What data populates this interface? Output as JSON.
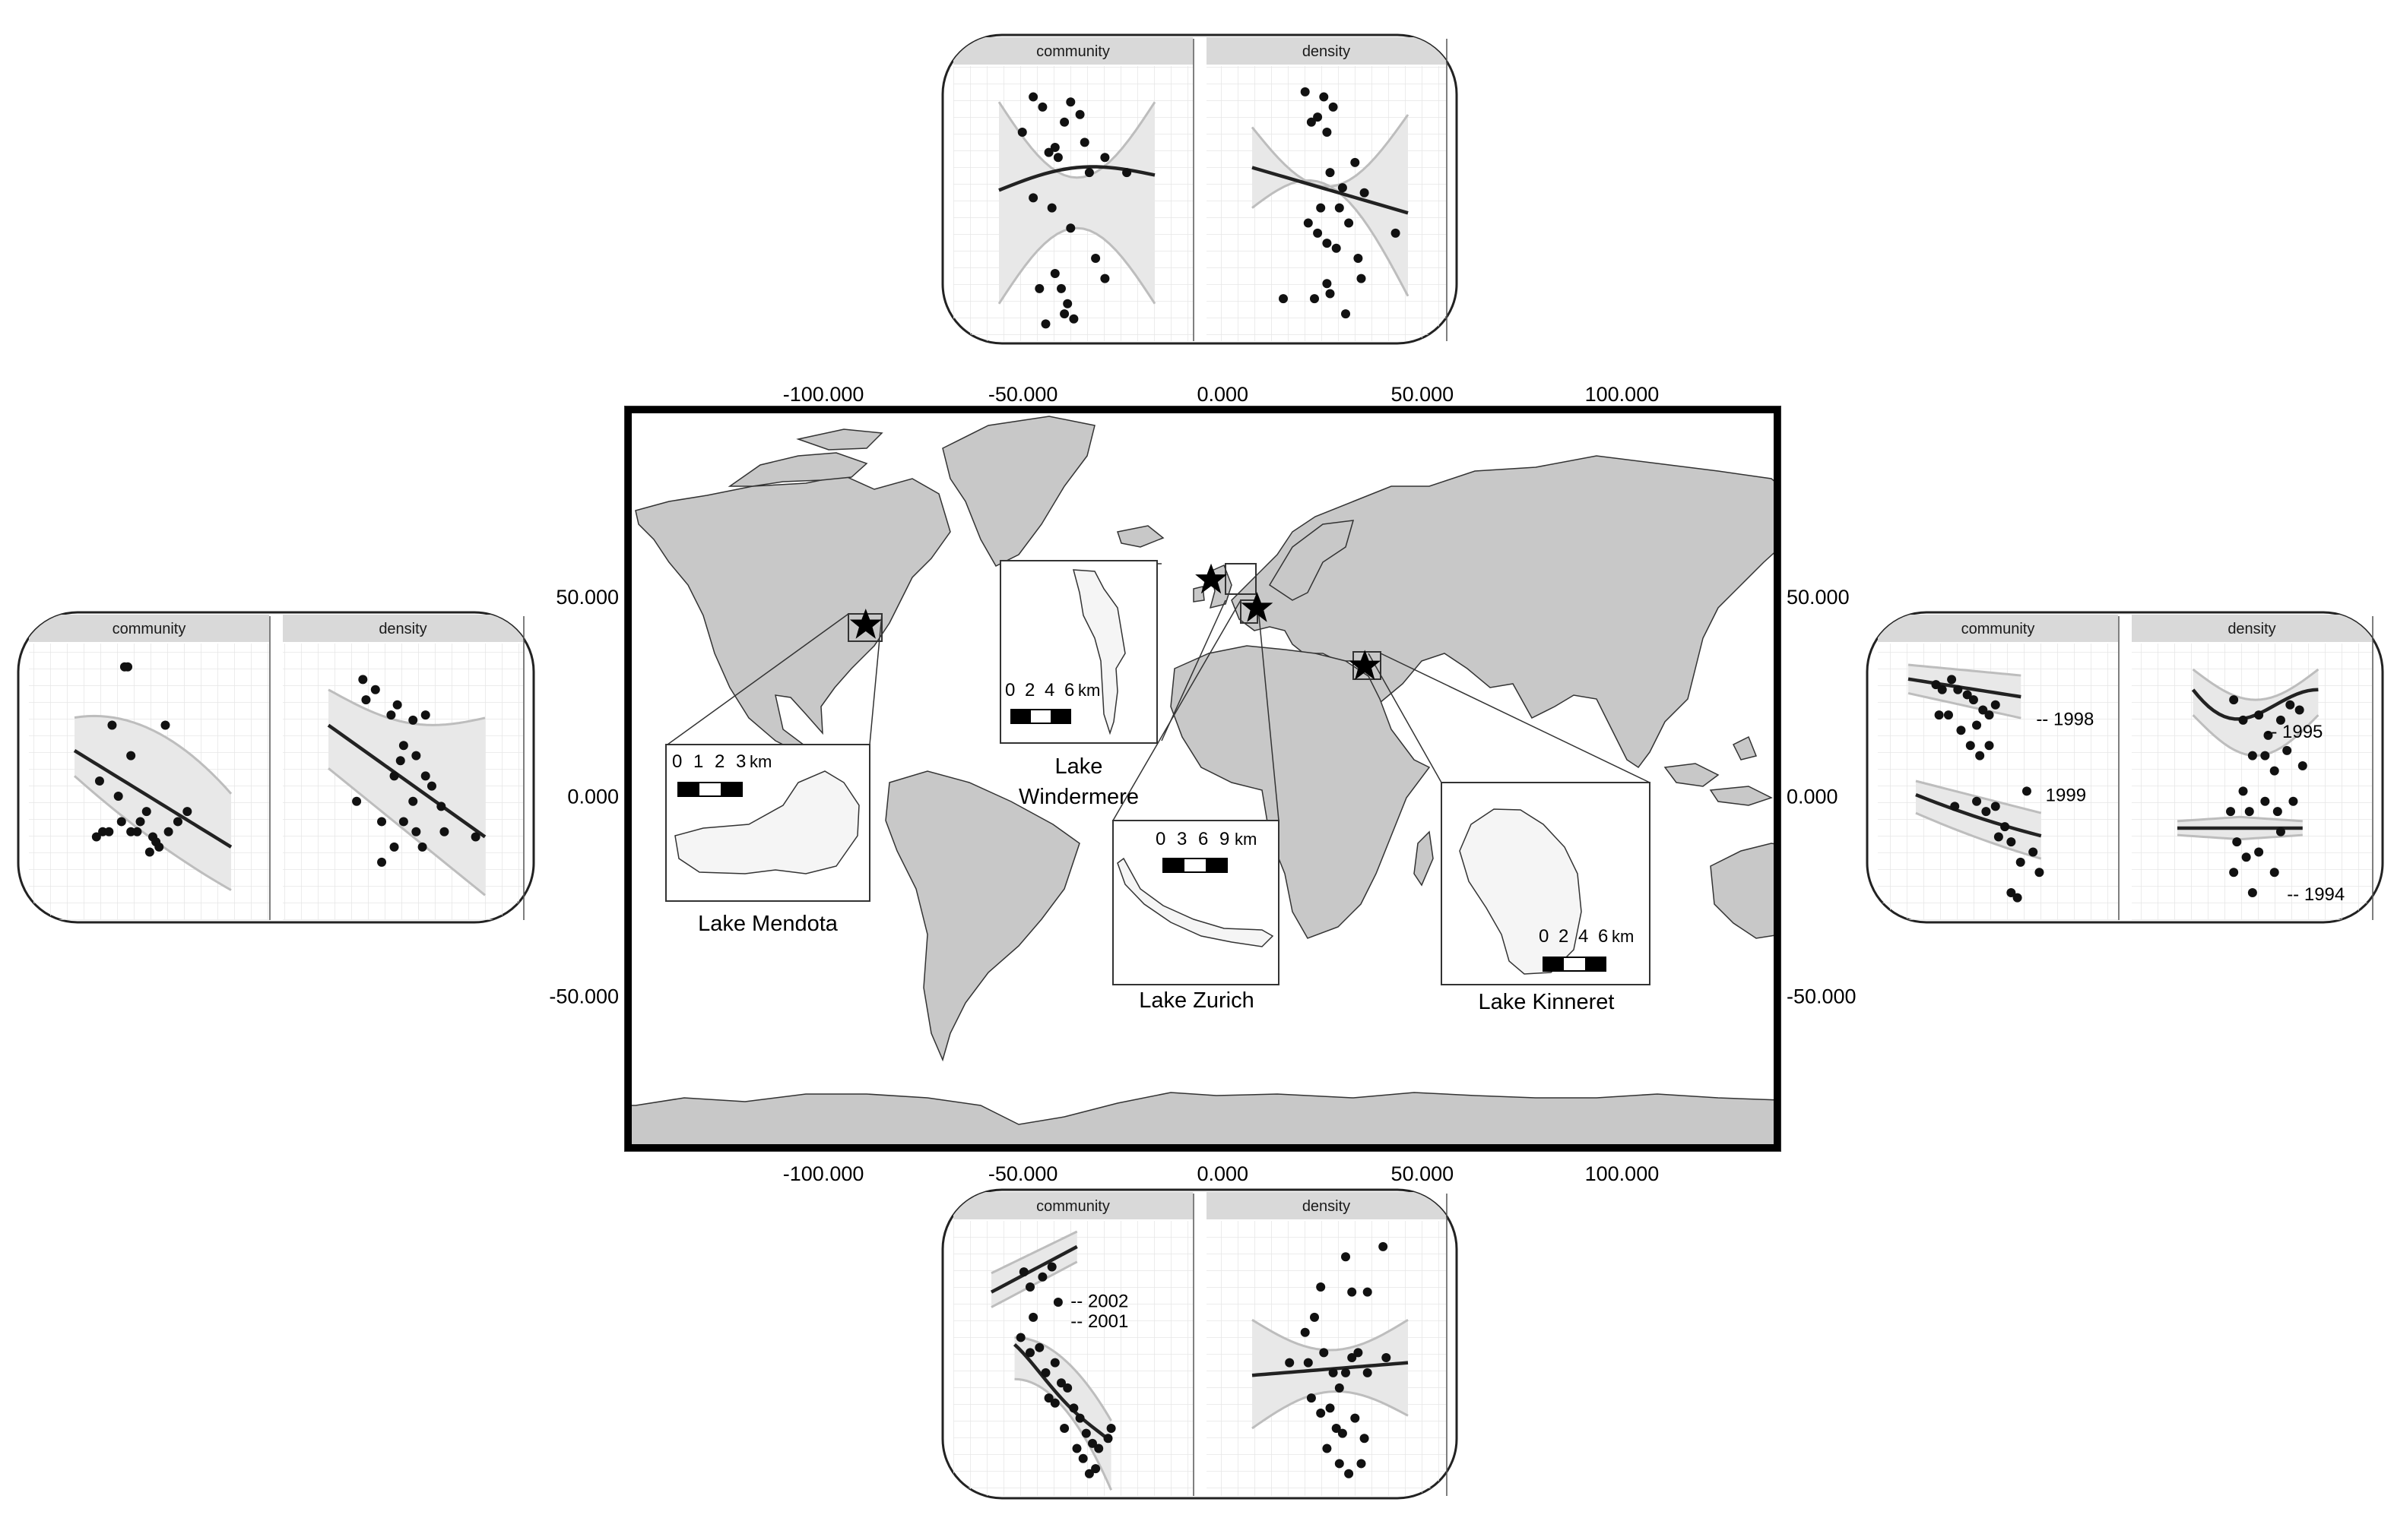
{
  "map": {
    "x_ticks": [
      "-100.000",
      "-50.000",
      "0.000",
      "50.000",
      "100.000"
    ],
    "y_ticks": [
      "50.000",
      "0.000",
      "-50.000"
    ],
    "x_tick_values": [
      -100,
      -50,
      0,
      50,
      100
    ],
    "y_tick_values": [
      50,
      0,
      -50
    ],
    "lon_range": [
      -148,
      138
    ],
    "lat_range": [
      -87,
      96
    ],
    "colors": {
      "land": "#c8c8c8",
      "ocean": "#ffffff",
      "outline": "#333333",
      "lake": "#f5f5f5"
    },
    "sites": [
      {
        "id": "mendota",
        "lon": -89.4,
        "lat": 43.1
      },
      {
        "id": "windermere",
        "lon": -2.9,
        "lat": 54.4
      },
      {
        "id": "zurich",
        "lon": 8.6,
        "lat": 47.3
      },
      {
        "id": "kinneret",
        "lon": 35.6,
        "lat": 32.8
      }
    ]
  },
  "lakes": {
    "mendota": {
      "name": "Lake Mendota",
      "scale": [
        "0",
        "1",
        "2",
        "3"
      ],
      "unit": "km"
    },
    "windermere": {
      "name_line1": "Lake",
      "name_line2": "Windermere",
      "scale": [
        "0",
        "2",
        "4",
        "6"
      ],
      "unit": "km"
    },
    "zurich": {
      "name": "Lake Zurich",
      "scale": [
        "0",
        "3",
        "6",
        "9"
      ],
      "unit": "km"
    },
    "kinneret": {
      "name": "Lake Kinneret",
      "scale": [
        "0",
        "2",
        "4",
        "6"
      ],
      "unit": "km"
    }
  },
  "panels": {
    "facet_labels": [
      "community",
      "density"
    ],
    "annotations": {
      "right_community": [
        "1998",
        "1999"
      ],
      "right_density": [
        "1995",
        "1994"
      ],
      "bottom_community": [
        "2002",
        "2001"
      ]
    }
  }
}
